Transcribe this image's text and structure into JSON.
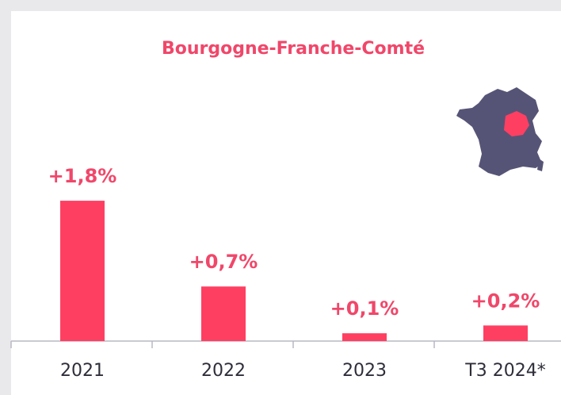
{
  "chart_data": {
    "type": "bar",
    "title": "Bourgogne-Franche-Comté",
    "categories": [
      "2021",
      "2022",
      "2023",
      "T3 2024*"
    ],
    "values": [
      1.8,
      0.7,
      0.1,
      0.2
    ],
    "value_labels": [
      "+1,8%",
      "+0,7%",
      "+0,1%",
      "+0,2%"
    ],
    "color": "#ff3f62"
  }
}
